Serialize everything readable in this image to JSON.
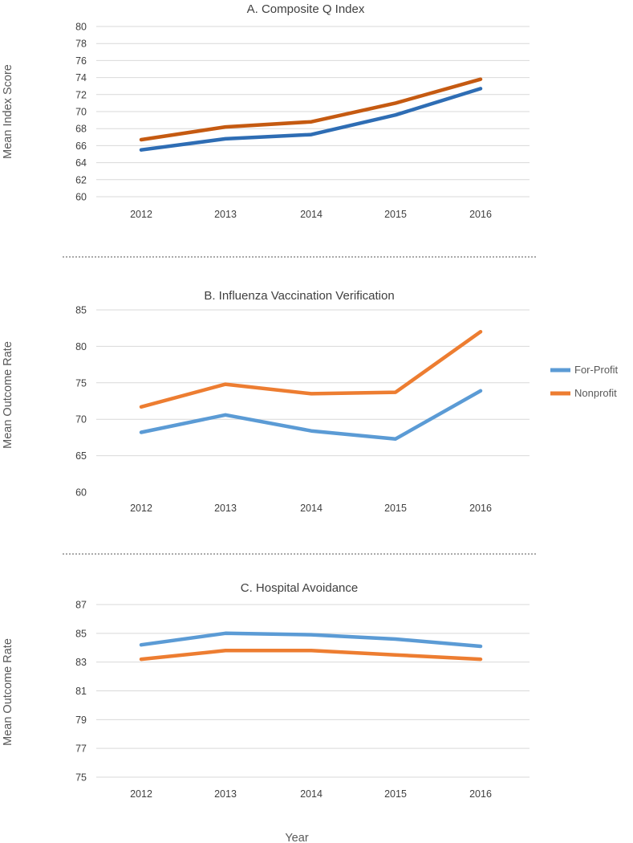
{
  "chart_data": [
    {
      "type": "line",
      "title": "A. Composite Q Index",
      "xlabel": "",
      "ylabel": "Mean Index Score",
      "categories": [
        "2012",
        "2013",
        "2014",
        "2015",
        "2016"
      ],
      "ylim": [
        60,
        80
      ],
      "yticks": [
        60,
        62,
        64,
        66,
        68,
        70,
        72,
        74,
        76,
        78,
        80
      ],
      "series": [
        {
          "name": "For-Profit",
          "color": "#2e6db4",
          "values": [
            65.5,
            66.8,
            67.3,
            69.6,
            72.7
          ]
        },
        {
          "name": "Nonprofit",
          "color": "#c55a11",
          "values": [
            66.7,
            68.2,
            68.8,
            71.0,
            73.8
          ]
        }
      ]
    },
    {
      "type": "line",
      "title": "B. Influenza Vaccination Verification",
      "xlabel": "",
      "ylabel": "Mean Outcome Rate",
      "categories": [
        "2012",
        "2013",
        "2014",
        "2015",
        "2016"
      ],
      "ylim": [
        60,
        85
      ],
      "yticks": [
        60,
        65,
        70,
        75,
        80,
        85
      ],
      "series": [
        {
          "name": "For-Profit",
          "color": "#5b9bd5",
          "values": [
            68.2,
            70.6,
            68.4,
            67.3,
            73.9
          ]
        },
        {
          "name": "Nonprofit",
          "color": "#ed7d31",
          "values": [
            71.7,
            74.8,
            73.5,
            73.7,
            82.0
          ]
        }
      ]
    },
    {
      "type": "line",
      "title": "C. Hospital Avoidance",
      "xlabel": "Year",
      "ylabel": "Mean Outcome Rate",
      "categories": [
        "2012",
        "2013",
        "2014",
        "2015",
        "2016"
      ],
      "ylim": [
        75,
        87
      ],
      "yticks": [
        75,
        77,
        79,
        81,
        83,
        85,
        87
      ],
      "series": [
        {
          "name": "For-Profit",
          "color": "#5b9bd5",
          "values": [
            84.2,
            85.0,
            84.9,
            84.6,
            84.1
          ]
        },
        {
          "name": "Nonprofit",
          "color": "#ed7d31",
          "values": [
            83.2,
            83.8,
            83.8,
            83.5,
            83.2
          ]
        }
      ]
    }
  ],
  "legend": {
    "items": [
      {
        "label": "For-Profit",
        "color": "#5b9bd5"
      },
      {
        "label": "Nonprofit",
        "color": "#ed7d31"
      }
    ]
  },
  "figure": {
    "xlabel": "Year"
  }
}
